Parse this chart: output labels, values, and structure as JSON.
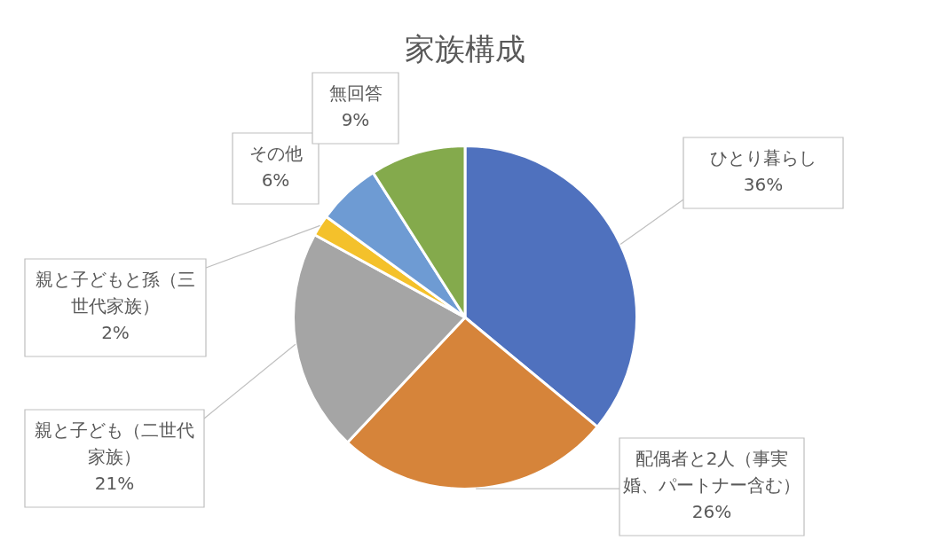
{
  "chart_data": {
    "type": "pie",
    "title": "家族構成",
    "categories": [
      "ひとり暮らし",
      "配偶者と2人（事実婚、パートナー含む）",
      "親と子ども（二世代家族）",
      "親と子どもと孫（三世代家族）",
      "その他",
      "無回答"
    ],
    "values": [
      36,
      26,
      21,
      2,
      6,
      9
    ],
    "colors": [
      "#4f71be",
      "#d6843a",
      "#a5a5a5",
      "#f4c12b",
      "#6e9bd3",
      "#84aa4c"
    ],
    "value_labels": [
      "36%",
      "26%",
      "21%",
      "2%",
      "6%",
      "9%"
    ],
    "legend": false
  }
}
